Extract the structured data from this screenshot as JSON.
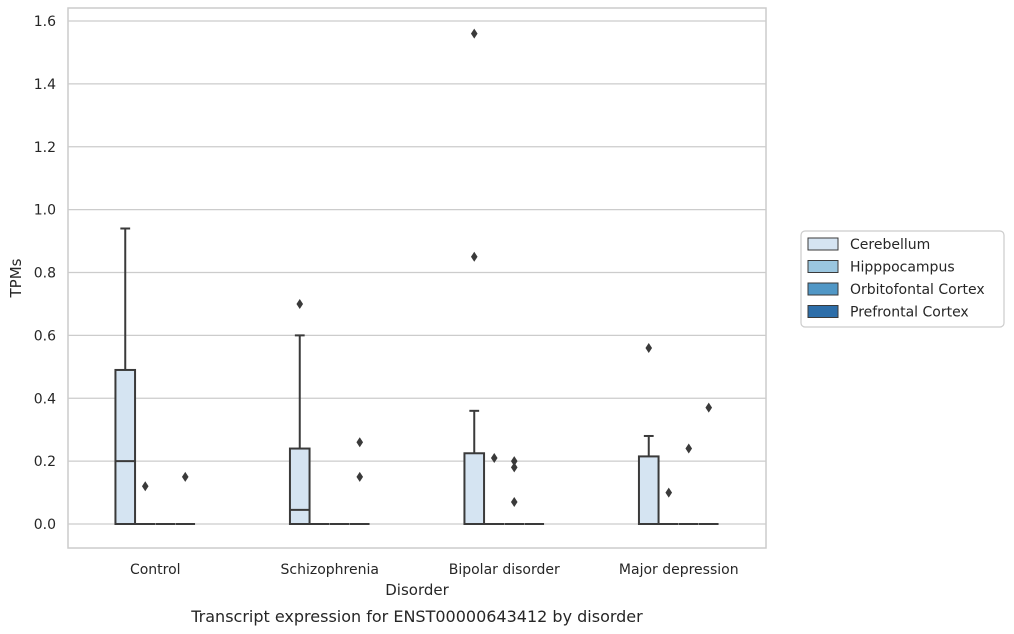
{
  "chart_data": {
    "type": "box",
    "caption": "Transcript expression for ENST00000643412 by disorder",
    "xlabel": "Disorder",
    "ylabel": "TPMs",
    "ylim": [
      -0.075,
      1.64
    ],
    "yticks": [
      0.0,
      0.2,
      0.4,
      0.6,
      0.8,
      1.0,
      1.2,
      1.4,
      1.6
    ],
    "ytick_labels": [
      "0.0",
      "0.2",
      "0.4",
      "0.6",
      "0.8",
      "1.0",
      "1.2",
      "1.4",
      "1.6"
    ],
    "grid": "horizontal",
    "categories": [
      "Control",
      "Schizophrenia",
      "Bipolar disorder",
      "Major depression"
    ],
    "legend": {
      "placement": "right"
    },
    "colors": {
      "Cerebellum": "#d5e4f2",
      "Hipppocampus": "#9ac6df",
      "Orbitofontal Cortex": "#5097c6",
      "Prefrontal Cortex": "#2d6ea9",
      "box_edge": "#3a3a3a",
      "grid": "#cccccc",
      "frame": "#cccccc"
    },
    "series": [
      {
        "name": "Cerebellum",
        "boxes": [
          {
            "q1": 0.0,
            "median": 0.2,
            "q3": 0.49,
            "whisker_low": 0.0,
            "whisker_high": 0.94,
            "outliers": []
          },
          {
            "q1": 0.0,
            "median": 0.045,
            "q3": 0.24,
            "whisker_low": 0.0,
            "whisker_high": 0.6,
            "outliers": [
              0.7
            ]
          },
          {
            "q1": 0.0,
            "median": 0.0,
            "q3": 0.225,
            "whisker_low": 0.0,
            "whisker_high": 0.36,
            "outliers": [
              0.85,
              1.56
            ]
          },
          {
            "q1": 0.0,
            "median": 0.0,
            "q3": 0.215,
            "whisker_low": 0.0,
            "whisker_high": 0.28,
            "outliers": [
              0.56
            ]
          }
        ]
      },
      {
        "name": "Hipppocampus",
        "boxes": [
          {
            "q1": 0.0,
            "median": 0.0,
            "q3": 0.0,
            "whisker_low": 0.0,
            "whisker_high": 0.0,
            "outliers": [
              0.12
            ]
          },
          {
            "q1": 0.0,
            "median": 0.0,
            "q3": 0.0,
            "whisker_low": 0.0,
            "whisker_high": 0.0,
            "outliers": []
          },
          {
            "q1": 0.0,
            "median": 0.0,
            "q3": 0.0,
            "whisker_low": 0.0,
            "whisker_high": 0.0,
            "outliers": [
              0.21
            ]
          },
          {
            "q1": 0.0,
            "median": 0.0,
            "q3": 0.0,
            "whisker_low": 0.0,
            "whisker_high": 0.0,
            "outliers": [
              0.1
            ]
          }
        ]
      },
      {
        "name": "Orbitofontal Cortex",
        "boxes": [
          {
            "q1": 0.0,
            "median": 0.0,
            "q3": 0.0,
            "whisker_low": 0.0,
            "whisker_high": 0.0,
            "outliers": []
          },
          {
            "q1": 0.0,
            "median": 0.0,
            "q3": 0.0,
            "whisker_low": 0.0,
            "whisker_high": 0.0,
            "outliers": []
          },
          {
            "q1": 0.0,
            "median": 0.0,
            "q3": 0.0,
            "whisker_low": 0.0,
            "whisker_high": 0.0,
            "outliers": [
              0.07,
              0.18,
              0.2
            ]
          },
          {
            "q1": 0.0,
            "median": 0.0,
            "q3": 0.0,
            "whisker_low": 0.0,
            "whisker_high": 0.0,
            "outliers": [
              0.24
            ]
          }
        ]
      },
      {
        "name": "Prefrontal Cortex",
        "boxes": [
          {
            "q1": 0.0,
            "median": 0.0,
            "q3": 0.0,
            "whisker_low": 0.0,
            "whisker_high": 0.0,
            "outliers": [
              0.15
            ]
          },
          {
            "q1": 0.0,
            "median": 0.0,
            "q3": 0.0,
            "whisker_low": 0.0,
            "whisker_high": 0.0,
            "outliers": [
              0.15,
              0.26
            ]
          },
          {
            "q1": 0.0,
            "median": 0.0,
            "q3": 0.0,
            "whisker_low": 0.0,
            "whisker_high": 0.0,
            "outliers": []
          },
          {
            "q1": 0.0,
            "median": 0.0,
            "q3": 0.0,
            "whisker_low": 0.0,
            "whisker_high": 0.0,
            "outliers": [
              0.37
            ]
          }
        ]
      }
    ]
  }
}
